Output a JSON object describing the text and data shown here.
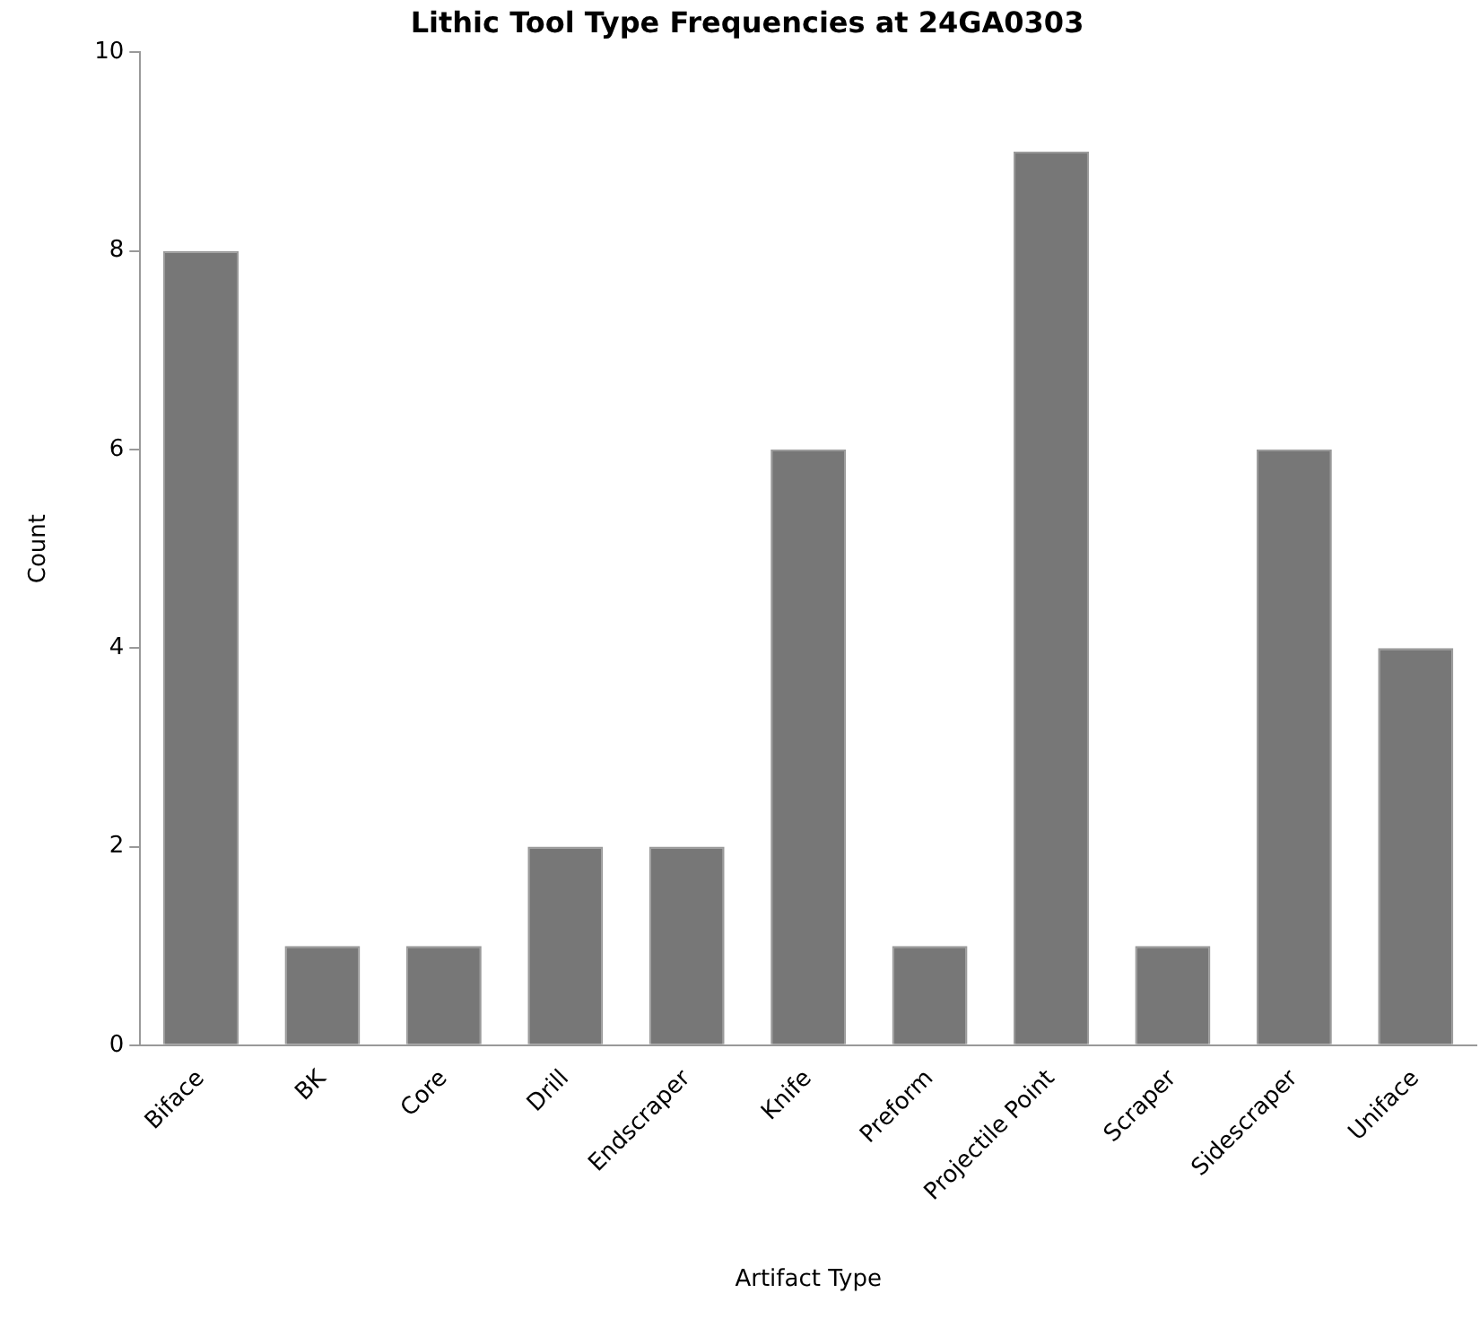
{
  "chart_data": {
    "type": "bar",
    "title": "Lithic Tool Type Frequencies at 24GA0303",
    "xlabel": "Artifact Type",
    "ylabel": "Count",
    "categories": [
      "Biface",
      "BK",
      "Core",
      "Drill",
      "Endscraper",
      "Knife",
      "Preform",
      "Projectile Point",
      "Scraper",
      "Sidescraper",
      "Uniface"
    ],
    "values": [
      8,
      1,
      1,
      2,
      2,
      6,
      1,
      9,
      1,
      6,
      4
    ],
    "color": "#777777",
    "ylim": [
      0,
      10
    ],
    "yticks": [
      0,
      2,
      4,
      6,
      8,
      10
    ],
    "grid": false,
    "legend": false
  }
}
